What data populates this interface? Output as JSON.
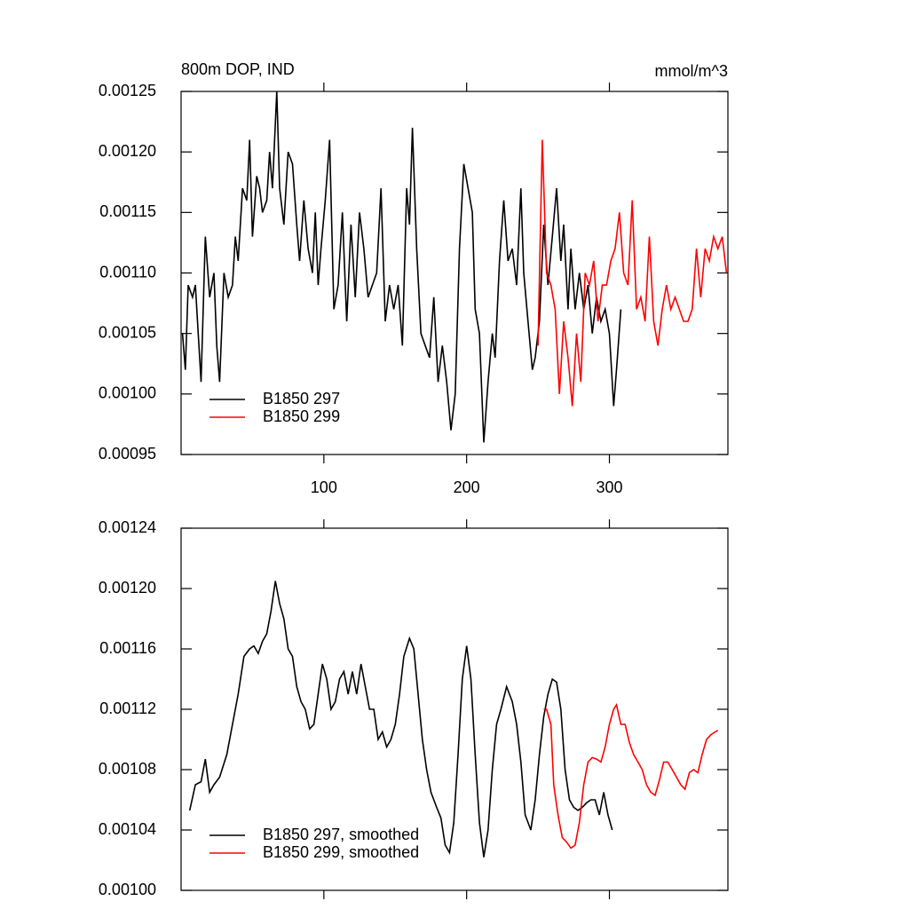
{
  "chart_data": [
    {
      "type": "line",
      "title": "800m DOP, IND",
      "units": "mmol/m^3",
      "xlim": [
        0,
        383
      ],
      "xticks": [
        100,
        200,
        300
      ],
      "xtick_labels": true,
      "ylim": [
        0.00095,
        0.00125
      ],
      "yticks": [
        0.00095,
        {
          "value": 0.001,
          "label": "0.00100"
        },
        0.00105,
        {
          "value": 0.0011,
          "label": "0.00110"
        },
        0.00115,
        {
          "value": 0.0012,
          "label": "0.00120"
        },
        0.00125
      ],
      "legend": "bottom-left",
      "series": [
        {
          "name": "B1850 297",
          "color": "#000000",
          "x": [
            1,
            3,
            5,
            8,
            10,
            14,
            17,
            20,
            23,
            25,
            27,
            30,
            33,
            36,
            38,
            40,
            43,
            46,
            48,
            50,
            53,
            55,
            57,
            60,
            62,
            64,
            67,
            69,
            72,
            75,
            78,
            81,
            83,
            86,
            89,
            92,
            94,
            96,
            98,
            101,
            104,
            107,
            110,
            113,
            116,
            119,
            122,
            125,
            128,
            131,
            134,
            137,
            140,
            143,
            146,
            149,
            152,
            155,
            158,
            160,
            162,
            165,
            168,
            171,
            174,
            177,
            180,
            183,
            186,
            189,
            192,
            195,
            198,
            201,
            204,
            206,
            209,
            212,
            215,
            218,
            220,
            223,
            226,
            229,
            232,
            235,
            238,
            240,
            243,
            246,
            248,
            251,
            254,
            257,
            260,
            263,
            266,
            268,
            271,
            273,
            276,
            279,
            282,
            285,
            288,
            291,
            294,
            297,
            300,
            303,
            305,
            308
          ],
          "values": [
            0.00105,
            0.00102,
            0.00109,
            0.00108,
            0.00109,
            0.00101,
            0.00113,
            0.00108,
            0.0011,
            0.00104,
            0.00101,
            0.0011,
            0.00108,
            0.00109,
            0.00113,
            0.00111,
            0.00117,
            0.00116,
            0.00121,
            0.00113,
            0.00118,
            0.00117,
            0.00115,
            0.00116,
            0.0012,
            0.00117,
            0.00125,
            0.00117,
            0.00114,
            0.0012,
            0.00119,
            0.00114,
            0.00111,
            0.00116,
            0.00112,
            0.0011,
            0.00115,
            0.00109,
            0.00112,
            0.00116,
            0.00121,
            0.00107,
            0.00109,
            0.00115,
            0.00106,
            0.00114,
            0.00108,
            0.00115,
            0.00112,
            0.00108,
            0.00109,
            0.0011,
            0.00117,
            0.00106,
            0.00109,
            0.00107,
            0.00109,
            0.00104,
            0.00117,
            0.00114,
            0.00122,
            0.00112,
            0.00105,
            0.00104,
            0.00103,
            0.00108,
            0.00101,
            0.00104,
            0.00101,
            0.00097,
            0.001,
            0.00112,
            0.00119,
            0.00117,
            0.00115,
            0.00107,
            0.00105,
            0.00096,
            0.00101,
            0.00105,
            0.00103,
            0.00111,
            0.00116,
            0.00111,
            0.00112,
            0.00109,
            0.00117,
            0.0011,
            0.00106,
            0.00102,
            0.00103,
            0.00106,
            0.00114,
            0.00109,
            0.00113,
            0.00117,
            0.00111,
            0.00114,
            0.00107,
            0.00112,
            0.00107,
            0.0011,
            0.00107,
            0.00109,
            0.00105,
            0.00108,
            0.00106,
            0.00107,
            0.00105,
            0.00099,
            0.00102,
            0.00107
          ]
        },
        {
          "name": "B1850 299",
          "color": "#ff0000",
          "x": [
            250,
            253,
            256,
            259,
            262,
            265,
            268,
            271,
            274,
            277,
            280,
            283,
            286,
            289,
            292,
            295,
            298,
            301,
            304,
            307,
            310,
            313,
            316,
            319,
            322,
            325,
            328,
            331,
            334,
            337,
            340,
            343,
            346,
            349,
            352,
            355,
            358,
            361,
            364,
            367,
            370,
            373,
            376,
            379,
            382
          ],
          "values": [
            0.00104,
            0.00121,
            0.0011,
            0.00109,
            0.00107,
            0.001,
            0.00106,
            0.00103,
            0.00099,
            0.00105,
            0.00101,
            0.0011,
            0.00109,
            0.00111,
            0.00106,
            0.00109,
            0.00109,
            0.00111,
            0.00112,
            0.00115,
            0.0011,
            0.00109,
            0.00116,
            0.00107,
            0.00108,
            0.00106,
            0.00113,
            0.00106,
            0.00104,
            0.00107,
            0.00109,
            0.00107,
            0.00108,
            0.00107,
            0.00106,
            0.00106,
            0.00107,
            0.00112,
            0.00108,
            0.00112,
            0.00111,
            0.00113,
            0.00112,
            0.00113,
            0.0011
          ]
        }
      ]
    },
    {
      "type": "line",
      "xlim": [
        0,
        383
      ],
      "xticks": [
        100,
        200,
        300
      ],
      "xtick_labels": false,
      "ylim": [
        0.001,
        0.00124
      ],
      "yticks": [
        {
          "value": 0.001,
          "label": "0.00100"
        },
        0.00104,
        0.00108,
        0.00112,
        0.00116,
        {
          "value": 0.0012,
          "label": "0.00120"
        },
        0.00124
      ],
      "legend": "bottom-left",
      "series": [
        {
          "name": "B1850 297, smoothed",
          "color": "#000000",
          "x": [
            6,
            10,
            14,
            17,
            20,
            23,
            27,
            32,
            36,
            40,
            44,
            48,
            51,
            54,
            57,
            60,
            63,
            66,
            69,
            72,
            75,
            78,
            81,
            84,
            87,
            90,
            93,
            96,
            99,
            102,
            105,
            108,
            111,
            114,
            117,
            120,
            123,
            126,
            129,
            132,
            135,
            138,
            141,
            144,
            147,
            150,
            153,
            156,
            160,
            163,
            166,
            169,
            172,
            175,
            179,
            182,
            185,
            188,
            191,
            194,
            197,
            200,
            203,
            206,
            209,
            212,
            215,
            218,
            221,
            224,
            228,
            232,
            235,
            238,
            241,
            245,
            248,
            251,
            254,
            257,
            260,
            263,
            266,
            269,
            272,
            275,
            278,
            281,
            284,
            287,
            290,
            293,
            296,
            299,
            302
          ],
          "values": [
            0.001053,
            0.00107,
            0.001072,
            0.001087,
            0.001065,
            0.00107,
            0.001075,
            0.00109,
            0.00111,
            0.00113,
            0.001155,
            0.00116,
            0.001162,
            0.001157,
            0.001165,
            0.00117,
            0.001185,
            0.001205,
            0.00119,
            0.00118,
            0.00116,
            0.001155,
            0.001135,
            0.001125,
            0.00112,
            0.001107,
            0.00111,
            0.00113,
            0.00115,
            0.00114,
            0.00112,
            0.001125,
            0.00114,
            0.001145,
            0.00113,
            0.001145,
            0.00113,
            0.00115,
            0.001135,
            0.00112,
            0.00112,
            0.0011,
            0.001105,
            0.001095,
            0.0011,
            0.00111,
            0.00113,
            0.001155,
            0.001167,
            0.00116,
            0.00113,
            0.0011,
            0.00108,
            0.001065,
            0.001055,
            0.001048,
            0.00103,
            0.001025,
            0.001045,
            0.00109,
            0.00114,
            0.001162,
            0.00114,
            0.00109,
            0.001045,
            0.001022,
            0.00104,
            0.00108,
            0.00111,
            0.00112,
            0.001135,
            0.001125,
            0.00111,
            0.001085,
            0.00105,
            0.00104,
            0.00106,
            0.00109,
            0.001115,
            0.00113,
            0.00114,
            0.001138,
            0.00112,
            0.00108,
            0.00106,
            0.001055,
            0.001053,
            0.001055,
            0.001058,
            0.00106,
            0.00106,
            0.00105,
            0.001065,
            0.00105,
            0.00104
          ]
        },
        {
          "name": "B1850 299, smoothed",
          "color": "#ff0000",
          "x": [
            254,
            256,
            259,
            261,
            264,
            267,
            270,
            273,
            276,
            279,
            282,
            285,
            288,
            291,
            294,
            297,
            300,
            303,
            305,
            308,
            311,
            314,
            317,
            320,
            323,
            326,
            329,
            332,
            335,
            338,
            341,
            344,
            347,
            350,
            353,
            356,
            359,
            362,
            365,
            368,
            371,
            374,
            376
          ],
          "values": [
            0.00112,
            0.00112,
            0.00111,
            0.00107,
            0.00105,
            0.001035,
            0.001032,
            0.001028,
            0.00103,
            0.001045,
            0.00107,
            0.001085,
            0.001088,
            0.001087,
            0.001085,
            0.001095,
            0.00111,
            0.00112,
            0.001123,
            0.00111,
            0.00111,
            0.001098,
            0.00109,
            0.001085,
            0.00108,
            0.00107,
            0.001065,
            0.001063,
            0.001073,
            0.001085,
            0.001085,
            0.00108,
            0.001075,
            0.00107,
            0.001067,
            0.001078,
            0.00108,
            0.001078,
            0.00109,
            0.0011,
            0.001103,
            0.001105,
            0.001106
          ]
        }
      ]
    }
  ]
}
